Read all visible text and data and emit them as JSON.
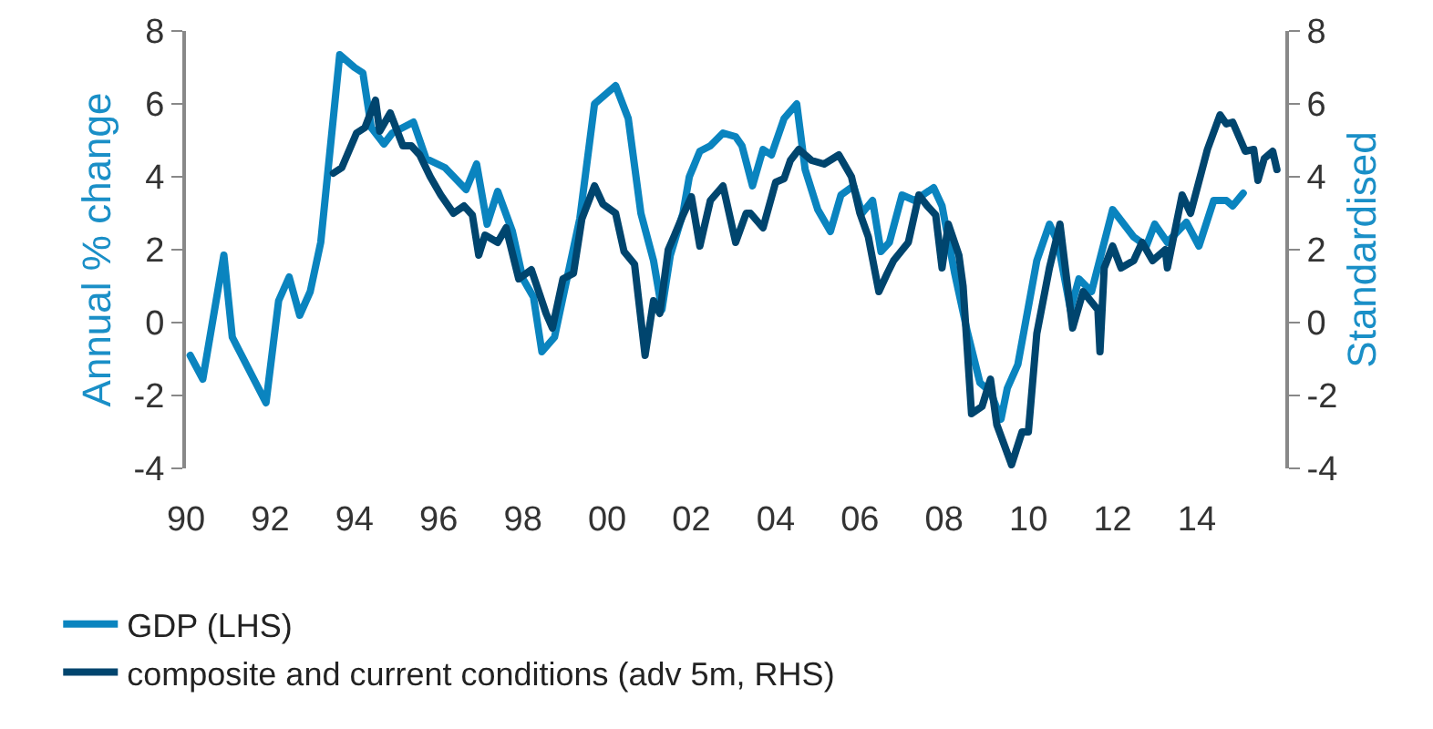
{
  "chart_data": {
    "type": "line",
    "ylabel": "Annual % change",
    "y2label": "Standardised",
    "xlim": [
      1990,
      2016.1
    ],
    "xticks": [
      {
        "value": 1990,
        "label": "90"
      },
      {
        "value": 1992,
        "label": "92"
      },
      {
        "value": 1994,
        "label": "94"
      },
      {
        "value": 1996,
        "label": "96"
      },
      {
        "value": 1998,
        "label": "98"
      },
      {
        "value": 2000,
        "label": "00"
      },
      {
        "value": 2002,
        "label": "02"
      },
      {
        "value": 2004,
        "label": "04"
      },
      {
        "value": 2006,
        "label": "06"
      },
      {
        "value": 2008,
        "label": "08"
      },
      {
        "value": 2010,
        "label": "10"
      },
      {
        "value": 2012,
        "label": "12"
      },
      {
        "value": 2014,
        "label": "14"
      },
      {
        "value": 2016,
        "label": null
      }
    ],
    "ylim": [
      -4,
      8
    ],
    "yticks": [
      -4,
      -2,
      0,
      2,
      4,
      6,
      8
    ],
    "y2lim": [
      -4,
      8
    ],
    "y2ticks": [
      -4,
      -2,
      0,
      2,
      4,
      6,
      8
    ],
    "grid": false,
    "legend": "bottom",
    "marker": "none",
    "line_style": "solid",
    "series": [
      {
        "name": "GDP (LHS)",
        "color": "#0a84bf",
        "x": [
          1990.1,
          1990.4,
          1990.9,
          1991.1,
          1991.9,
          1992.2,
          1992.45,
          1992.7,
          1992.95,
          1993.2,
          1993.65,
          1994.0,
          1994.2,
          1994.4,
          1994.7,
          1994.9,
          1995.4,
          1995.7,
          1996.15,
          1996.65,
          1996.9,
          1997.15,
          1997.4,
          1997.75,
          1998.0,
          1998.25,
          1998.45,
          1998.75,
          1999.1,
          1999.35,
          1999.7,
          2000.2,
          2000.5,
          2000.8,
          2001.1,
          2001.3,
          2001.5,
          2001.8,
          2001.95,
          2002.2,
          2002.45,
          2002.75,
          2003.05,
          2003.2,
          2003.45,
          2003.7,
          2003.9,
          2004.2,
          2004.5,
          2004.7,
          2005.0,
          2005.3,
          2005.55,
          2005.85,
          2006.05,
          2006.3,
          2006.5,
          2006.7,
          2007.0,
          2007.3,
          2007.75,
          2007.95,
          2008.25,
          2008.55,
          2008.85,
          2009.1,
          2009.35,
          2009.5,
          2009.75,
          2010.2,
          2010.5,
          2010.7,
          2011.0,
          2011.2,
          2011.5,
          2012.0,
          2012.5,
          2012.8,
          2013.0,
          2013.3,
          2013.75,
          2014.05,
          2014.4,
          2014.7,
          2014.85,
          2015.1
        ],
        "values": [
          -0.9,
          -1.55,
          1.85,
          -0.4,
          -2.2,
          0.6,
          1.25,
          0.2,
          0.85,
          2.2,
          7.35,
          7.0,
          6.85,
          5.35,
          4.9,
          5.2,
          5.5,
          4.5,
          4.25,
          3.65,
          4.35,
          2.7,
          3.6,
          2.5,
          1.2,
          0.7,
          -0.8,
          -0.4,
          1.5,
          2.85,
          6.0,
          6.5,
          5.6,
          3.0,
          1.7,
          0.35,
          1.85,
          3.0,
          4.0,
          4.7,
          4.85,
          5.2,
          5.1,
          4.85,
          3.75,
          4.75,
          4.6,
          5.6,
          6.0,
          4.2,
          3.1,
          2.5,
          3.5,
          3.75,
          3.0,
          3.35,
          1.95,
          2.2,
          3.5,
          3.35,
          3.7,
          3.2,
          1.35,
          -0.25,
          -1.65,
          -1.9,
          -2.65,
          -1.8,
          -1.15,
          1.7,
          2.7,
          2.2,
          0.35,
          1.2,
          0.85,
          3.1,
          2.35,
          2.1,
          2.7,
          2.2,
          2.75,
          2.1,
          3.35,
          3.35,
          3.2,
          3.55
        ]
      },
      {
        "name": "composite and current conditions (adv 5m, RHS)",
        "color": "#00456e",
        "axis": "y2",
        "x": [
          1993.5,
          1993.7,
          1994.05,
          1994.25,
          1994.5,
          1994.6,
          1994.85,
          1995.15,
          1995.35,
          1995.55,
          1995.8,
          1996.05,
          1996.35,
          1996.6,
          1996.8,
          1996.95,
          1997.1,
          1997.4,
          1997.6,
          1997.9,
          1998.2,
          1998.55,
          1998.7,
          1998.95,
          1999.2,
          1999.4,
          1999.7,
          1999.9,
          2000.2,
          2000.4,
          2000.65,
          2000.9,
          2001.1,
          2001.25,
          2001.45,
          2001.6,
          2001.8,
          2002.0,
          2002.2,
          2002.45,
          2002.75,
          2003.05,
          2003.3,
          2003.4,
          2003.7,
          2004.0,
          2004.2,
          2004.35,
          2004.55,
          2004.85,
          2005.15,
          2005.5,
          2005.8,
          2006.0,
          2006.2,
          2006.45,
          2006.65,
          2006.8,
          2007.15,
          2007.4,
          2007.6,
          2007.8,
          2007.95,
          2008.1,
          2008.35,
          2008.45,
          2008.65,
          2008.9,
          2009.1,
          2009.25,
          2009.6,
          2009.85,
          2010.0,
          2010.2,
          2010.5,
          2010.75,
          2011.05,
          2011.3,
          2011.65,
          2011.7,
          2011.8,
          2012.0,
          2012.2,
          2012.5,
          2012.7,
          2012.95,
          2013.25,
          2013.3,
          2013.65,
          2013.85,
          2014.25,
          2014.55,
          2014.7,
          2014.85,
          2015.15,
          2015.35,
          2015.45,
          2015.6,
          2015.8,
          2015.9
        ],
        "values": [
          4.1,
          4.25,
          5.2,
          5.35,
          6.1,
          5.25,
          5.75,
          4.85,
          4.85,
          4.6,
          4.0,
          3.5,
          3.0,
          3.2,
          2.95,
          1.85,
          2.4,
          2.2,
          2.6,
          1.2,
          1.45,
          0.25,
          -0.15,
          1.2,
          1.35,
          2.85,
          3.75,
          3.25,
          3.0,
          1.95,
          1.6,
          -0.9,
          0.6,
          0.25,
          2.0,
          2.4,
          2.95,
          3.45,
          2.1,
          3.35,
          3.75,
          2.2,
          3.0,
          3.0,
          2.6,
          3.85,
          3.95,
          4.45,
          4.75,
          4.45,
          4.35,
          4.6,
          4.0,
          3.0,
          2.35,
          0.85,
          1.35,
          1.7,
          2.2,
          3.5,
          3.2,
          2.95,
          1.5,
          2.7,
          1.85,
          1.0,
          -2.5,
          -2.3,
          -1.55,
          -2.8,
          -3.9,
          -3.0,
          -3.0,
          -0.3,
          1.5,
          2.7,
          -0.15,
          0.85,
          0.35,
          -0.8,
          1.5,
          2.1,
          1.5,
          1.7,
          2.2,
          1.7,
          2.0,
          1.5,
          3.5,
          3.0,
          4.75,
          5.7,
          5.45,
          5.5,
          4.7,
          4.75,
          3.9,
          4.5,
          4.7,
          4.2
        ]
      }
    ]
  }
}
